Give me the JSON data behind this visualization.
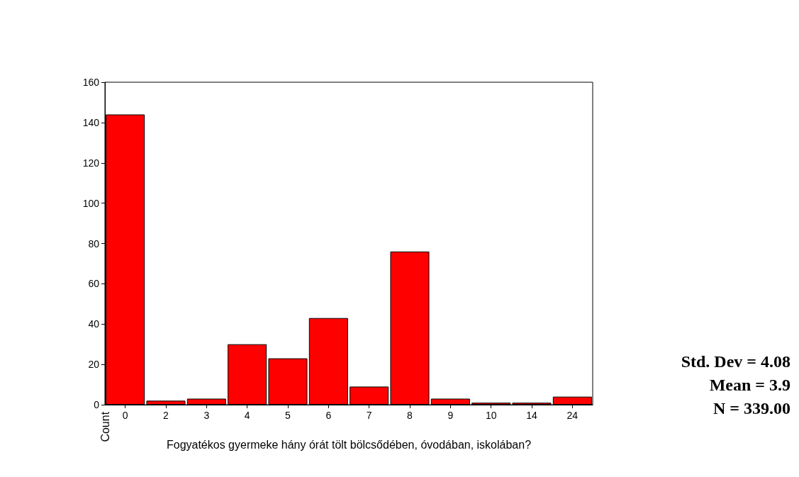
{
  "chart_data": {
    "type": "bar",
    "xlabel": "Fogyatékos gyermeke hány órát tölt bölcsődében, óvodában, iskolában?",
    "ylabel": "Count",
    "categories": [
      "0",
      "2",
      "3",
      "4",
      "5",
      "6",
      "7",
      "8",
      "9",
      "10",
      "14",
      "24"
    ],
    "values": [
      144,
      2,
      3,
      30,
      23,
      43,
      9,
      76,
      3,
      1,
      1,
      4
    ],
    "color": "#ff0000",
    "ylim": [
      0,
      160
    ],
    "yticks": [
      0,
      20,
      40,
      60,
      80,
      100,
      120,
      140,
      160
    ],
    "grid": false,
    "annotations": [
      "Std. Dev = 4.08",
      "Mean = 3.9",
      "N = 339.00"
    ]
  }
}
